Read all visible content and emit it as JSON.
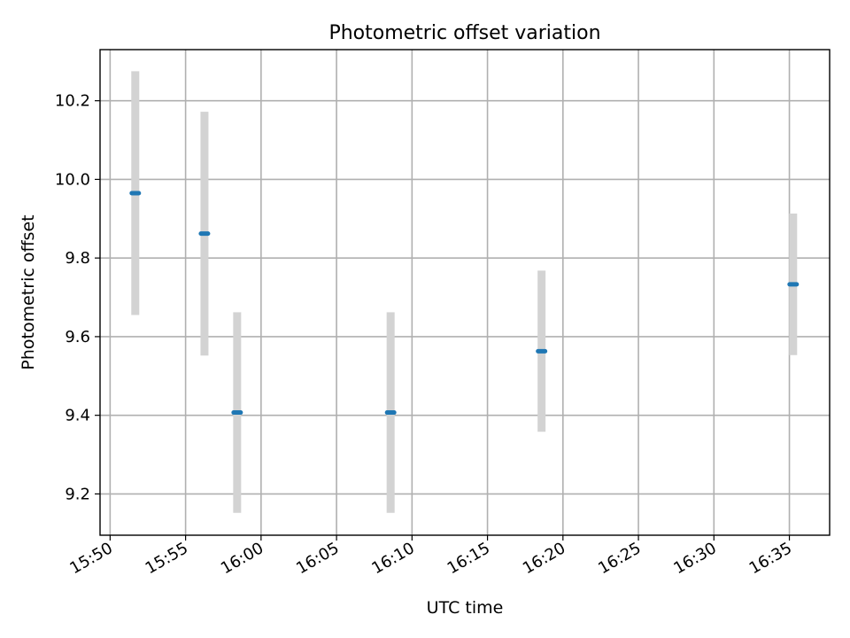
{
  "chart_data": {
    "type": "scatter",
    "title": "Photometric offset variation",
    "xlabel": "UTC time",
    "ylabel": "Photometric offset",
    "x_ticks": [
      "15:50",
      "15:55",
      "16:00",
      "16:05",
      "16:10",
      "16:15",
      "16:20",
      "16:25",
      "16:30",
      "16:35"
    ],
    "y_ticks": [
      "9.2",
      "9.4",
      "9.6",
      "9.8",
      "10.0",
      "10.2"
    ],
    "xlim": [
      "15:49:20",
      "16:37:40"
    ],
    "ylim": [
      9.095,
      10.33
    ],
    "grid": true,
    "points": [
      {
        "x": "15:51:40",
        "y": 9.965,
        "y_err": 0.31
      },
      {
        "x": "15:56:15",
        "y": 9.862,
        "y_err": 0.31
      },
      {
        "x": "15:58:25",
        "y": 9.407,
        "y_err": 0.255
      },
      {
        "x": "16:08:35",
        "y": 9.407,
        "y_err": 0.255
      },
      {
        "x": "16:18:35",
        "y": 9.563,
        "y_err": 0.205
      },
      {
        "x": "16:35:15",
        "y": 9.733,
        "y_err": 0.18
      }
    ],
    "colors": {
      "marker": "#1f77b4",
      "errorbar": "#d3d3d3",
      "grid": "#b0b0b0",
      "axes": "#000000"
    }
  }
}
